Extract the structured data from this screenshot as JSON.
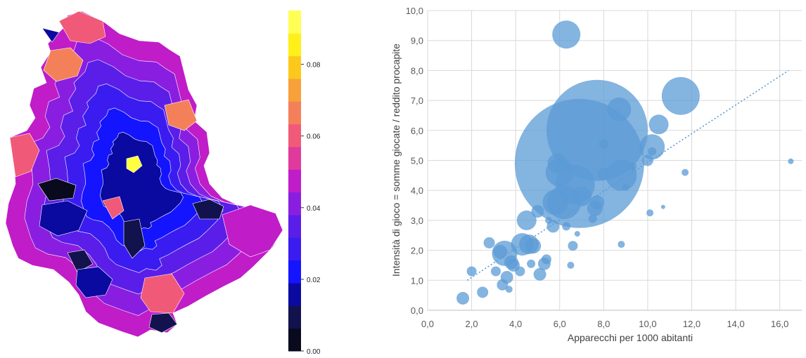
{
  "chart_data": [
    {
      "type": "heatmap",
      "colorbar": {
        "ticks": [
          "0.00",
          "0.02",
          "0.04",
          "0.06",
          "0.08"
        ],
        "tick_values": [
          0.0,
          0.02,
          0.04,
          0.06,
          0.08
        ],
        "range": [
          0.0,
          0.095
        ],
        "colors": [
          "#0a0a1e",
          "#12124e",
          "#0a0aa0",
          "#1414ff",
          "#3a1cf0",
          "#5a1ee8",
          "#8a1ee0",
          "#c01cc8",
          "#e03a9c",
          "#f05a78",
          "#f4805a",
          "#f8a03a",
          "#fcc81c",
          "#fff01a",
          "#ffff55"
        ]
      },
      "region_colors": [
        "#0a0aa0",
        "#1414ff",
        "#3a1cf0",
        "#5a1ee8",
        "#8a1ee0",
        "#c01cc8",
        "#f05a78",
        "#f4805a",
        "#12124e",
        "#0a0a1e",
        "#ffff40"
      ]
    },
    {
      "type": "scatter",
      "xlabel": "Apparecchi per 1000 abitanti",
      "ylabel": "Intensità di gioco = somme giocate / reddito procapite",
      "xlim": [
        0.0,
        17.0
      ],
      "ylim": [
        0.0,
        10.0
      ],
      "x_ticks": [
        "0,0",
        "2,0",
        "4,0",
        "6,0",
        "8,0",
        "10,0",
        "12,0",
        "14,0",
        "16,0"
      ],
      "y_ticks": [
        "0,0",
        "1,0",
        "2,0",
        "3,0",
        "4,0",
        "5,0",
        "6,0",
        "7,0",
        "8,0",
        "9,0",
        "10,0"
      ],
      "grid": true,
      "bubble_color": "#5b9bd5",
      "trendline": {
        "style": "dotted",
        "from": [
          1.8,
          1.0
        ],
        "to": [
          16.4,
          8.0
        ]
      },
      "points": [
        {
          "x": 1.6,
          "y": 0.4,
          "s": 9
        },
        {
          "x": 2.0,
          "y": 1.3,
          "s": 7
        },
        {
          "x": 2.5,
          "y": 0.6,
          "s": 8
        },
        {
          "x": 2.8,
          "y": 2.25,
          "s": 8
        },
        {
          "x": 3.1,
          "y": 1.3,
          "s": 7
        },
        {
          "x": 3.3,
          "y": 1.95,
          "s": 10
        },
        {
          "x": 3.5,
          "y": 1.9,
          "s": 18
        },
        {
          "x": 3.4,
          "y": 0.85,
          "s": 8
        },
        {
          "x": 3.6,
          "y": 1.1,
          "s": 9
        },
        {
          "x": 3.7,
          "y": 0.7,
          "s": 5
        },
        {
          "x": 3.9,
          "y": 1.5,
          "s": 9
        },
        {
          "x": 3.8,
          "y": 1.6,
          "s": 10
        },
        {
          "x": 4.2,
          "y": 1.3,
          "s": 7
        },
        {
          "x": 4.3,
          "y": 2.2,
          "s": 16
        },
        {
          "x": 4.6,
          "y": 2.2,
          "s": 14
        },
        {
          "x": 4.8,
          "y": 2.15,
          "s": 11
        },
        {
          "x": 4.5,
          "y": 3.0,
          "s": 14
        },
        {
          "x": 4.7,
          "y": 1.55,
          "s": 6
        },
        {
          "x": 5.0,
          "y": 3.3,
          "s": 9
        },
        {
          "x": 5.1,
          "y": 1.2,
          "s": 9
        },
        {
          "x": 5.3,
          "y": 1.55,
          "s": 9
        },
        {
          "x": 5.4,
          "y": 1.7,
          "s": 7
        },
        {
          "x": 5.5,
          "y": 3.0,
          "s": 5
        },
        {
          "x": 5.7,
          "y": 2.8,
          "s": 9
        },
        {
          "x": 5.8,
          "y": 3.6,
          "s": 18
        },
        {
          "x": 6.2,
          "y": 3.6,
          "s": 24
        },
        {
          "x": 6.0,
          "y": 4.6,
          "s": 20
        },
        {
          "x": 5.9,
          "y": 4.9,
          "s": 14
        },
        {
          "x": 6.3,
          "y": 9.2,
          "s": 20
        },
        {
          "x": 6.3,
          "y": 2.8,
          "s": 6
        },
        {
          "x": 6.5,
          "y": 1.5,
          "s": 5
        },
        {
          "x": 6.6,
          "y": 2.15,
          "s": 7
        },
        {
          "x": 6.8,
          "y": 2.55,
          "s": 4
        },
        {
          "x": 6.7,
          "y": 4.2,
          "s": 28
        },
        {
          "x": 6.9,
          "y": 4.9,
          "s": 92
        },
        {
          "x": 7.0,
          "y": 3.8,
          "s": 14
        },
        {
          "x": 7.7,
          "y": 6.0,
          "s": 72
        },
        {
          "x": 7.5,
          "y": 3.05,
          "s": 6
        },
        {
          "x": 7.6,
          "y": 3.4,
          "s": 11
        },
        {
          "x": 7.7,
          "y": 3.6,
          "s": 10
        },
        {
          "x": 8.0,
          "y": 4.55,
          "s": 9
        },
        {
          "x": 8.0,
          "y": 5.55,
          "s": 7
        },
        {
          "x": 8.7,
          "y": 6.7,
          "s": 17
        },
        {
          "x": 8.8,
          "y": 4.5,
          "s": 22
        },
        {
          "x": 8.8,
          "y": 2.2,
          "s": 5
        },
        {
          "x": 9.0,
          "y": 4.1,
          "s": 5
        },
        {
          "x": 9.3,
          "y": 4.8,
          "s": 6
        },
        {
          "x": 10.0,
          "y": 5.0,
          "s": 8
        },
        {
          "x": 10.2,
          "y": 5.45,
          "s": 18
        },
        {
          "x": 10.2,
          "y": 5.3,
          "s": 6
        },
        {
          "x": 10.5,
          "y": 6.2,
          "s": 14
        },
        {
          "x": 10.1,
          "y": 3.25,
          "s": 5
        },
        {
          "x": 10.7,
          "y": 3.45,
          "s": 3
        },
        {
          "x": 11.5,
          "y": 7.15,
          "s": 27
        },
        {
          "x": 11.7,
          "y": 4.6,
          "s": 5
        },
        {
          "x": 16.5,
          "y": 4.97,
          "s": 4
        }
      ]
    }
  ]
}
